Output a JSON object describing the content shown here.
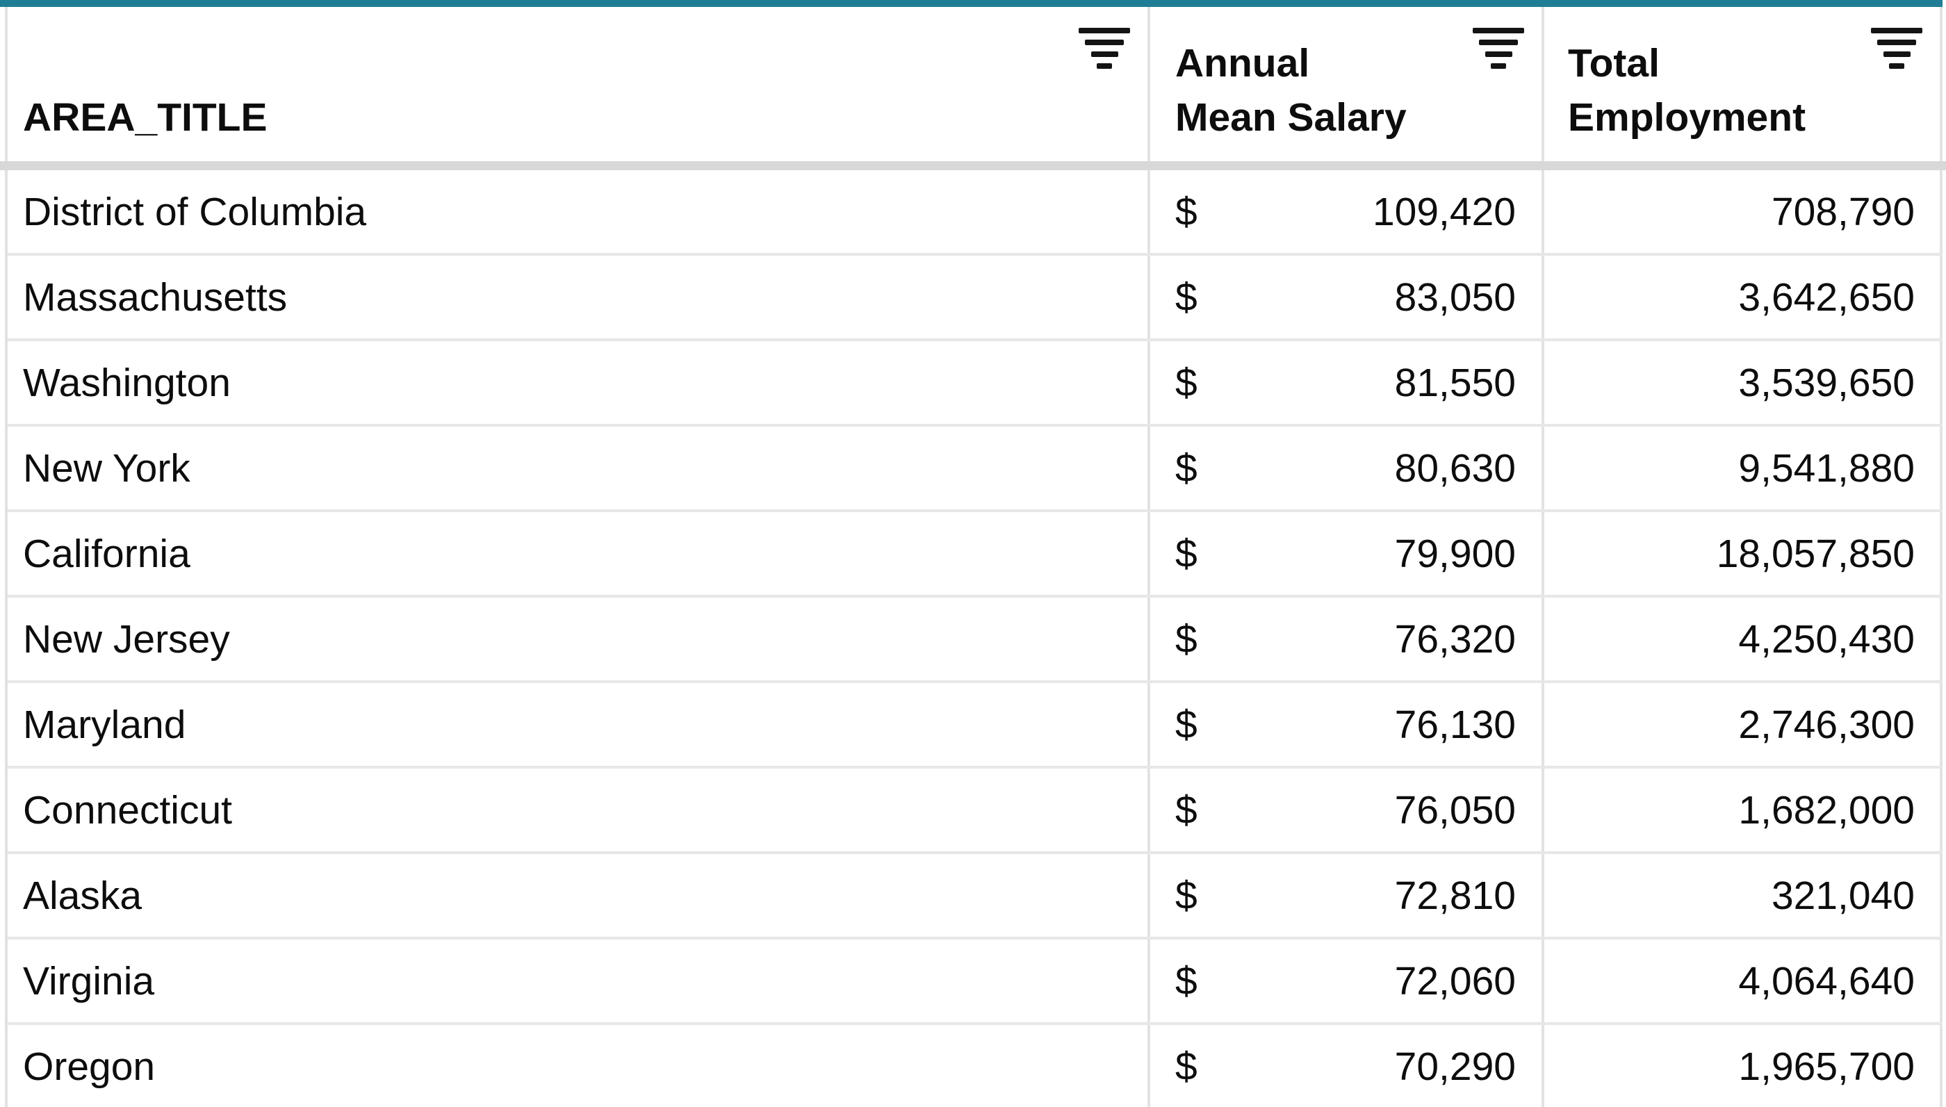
{
  "table": {
    "accent_color": "#1f7e95",
    "header_divider_color": "#d8d8d8",
    "row_divider_color": "#e7e7e7",
    "column_border_color": "#e2e2e2",
    "text_color": "#0d0d0d",
    "currency_symbol": "$",
    "columns": [
      {
        "id": "area_title",
        "line1": "AREA_TITLE",
        "line2": "",
        "icon": "filter-icon"
      },
      {
        "id": "annual_mean_salary",
        "line1": "Annual",
        "line2": "Mean Salary",
        "icon": "filter-icon"
      },
      {
        "id": "total_employment",
        "line1": "Total",
        "line2": "Employment",
        "icon": "filter-icon"
      }
    ],
    "rows": [
      {
        "area": "District of Columbia",
        "salary": "109,420",
        "employment": "708,790"
      },
      {
        "area": "Massachusetts",
        "salary": "83,050",
        "employment": "3,642,650"
      },
      {
        "area": "Washington",
        "salary": "81,550",
        "employment": "3,539,650"
      },
      {
        "area": "New York",
        "salary": "80,630",
        "employment": "9,541,880"
      },
      {
        "area": "California",
        "salary": "79,900",
        "employment": "18,057,850"
      },
      {
        "area": "New Jersey",
        "salary": "76,320",
        "employment": "4,250,430"
      },
      {
        "area": "Maryland",
        "salary": "76,130",
        "employment": "2,746,300"
      },
      {
        "area": "Connecticut",
        "salary": "76,050",
        "employment": "1,682,000"
      },
      {
        "area": "Alaska",
        "salary": "72,810",
        "employment": "321,040"
      },
      {
        "area": "Virginia",
        "salary": "72,060",
        "employment": "4,064,640"
      },
      {
        "area": "Oregon",
        "salary": "70,290",
        "employment": "1,965,700"
      }
    ]
  }
}
